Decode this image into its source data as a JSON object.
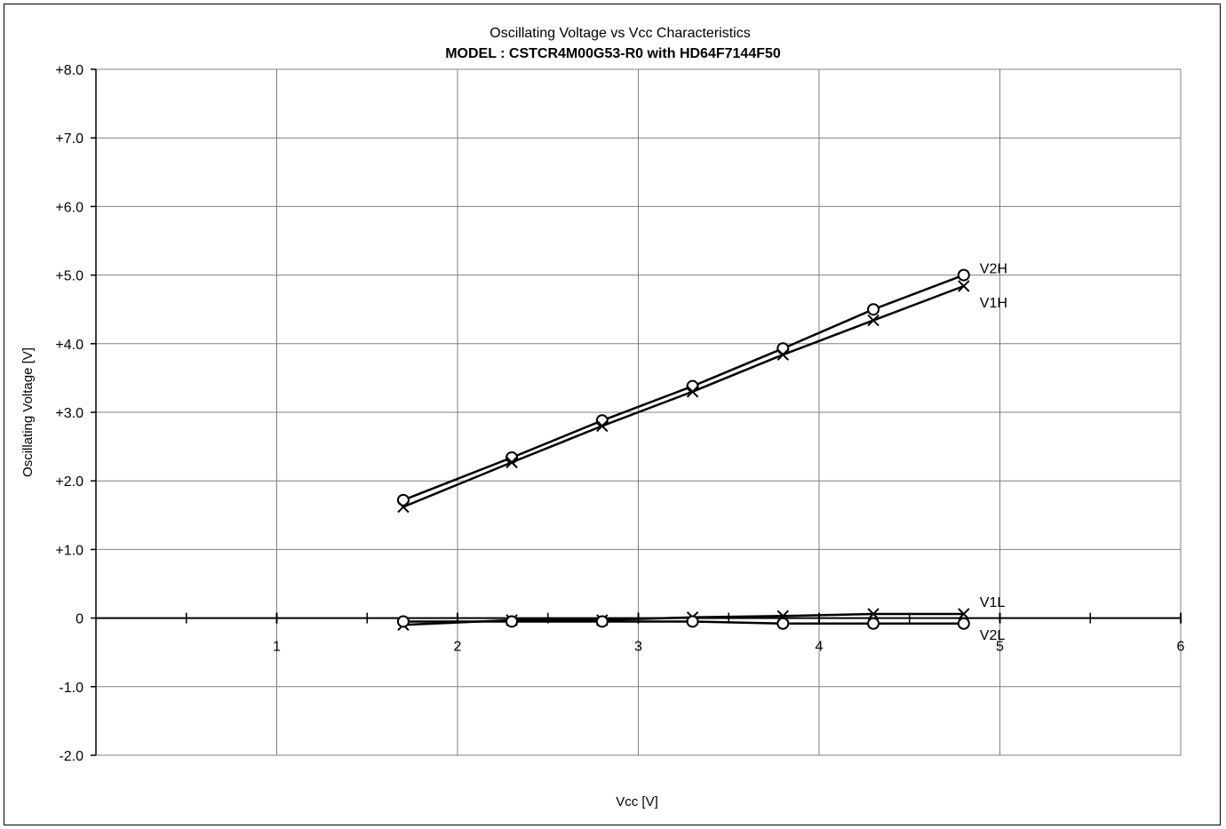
{
  "chart_data": {
    "type": "line",
    "title": "Oscillating Voltage vs Vcc Characteristics",
    "subtitle": "MODEL : CSTCR4M00G53-R0 with HD64F7144F50",
    "xlabel": "Vcc [V]",
    "ylabel": "Oscillating Voltage [V]",
    "xlim": [
      0,
      6
    ],
    "ylim": [
      -2.0,
      8.0
    ],
    "x_ticks": [
      1,
      2,
      3,
      4,
      5,
      6
    ],
    "x_tick_labels": [
      "1",
      "2",
      "3",
      "4",
      "5",
      "6"
    ],
    "y_ticks": [
      8,
      7,
      6,
      5,
      4,
      3,
      2,
      1,
      0,
      -1,
      -2
    ],
    "y_tick_labels": [
      "+8.0",
      "+7.0",
      "+6.0",
      "+5.0",
      "+4.0",
      "+3.0",
      "+2.0",
      "+1.0",
      "0",
      "-1.0",
      "-2.0"
    ],
    "grid": true,
    "legend": "inline labels at line ends",
    "series": [
      {
        "name": "V2H",
        "marker": "circle",
        "x": [
          1.7,
          2.3,
          2.8,
          3.3,
          3.8,
          4.3,
          4.8
        ],
        "values": [
          1.72,
          2.34,
          2.88,
          3.38,
          3.93,
          4.5,
          5.0
        ]
      },
      {
        "name": "V1H",
        "marker": "cross",
        "x": [
          1.7,
          2.3,
          2.8,
          3.3,
          3.8,
          4.3,
          4.8
        ],
        "values": [
          1.62,
          2.27,
          2.8,
          3.3,
          3.84,
          4.34,
          4.84
        ]
      },
      {
        "name": "V1L",
        "marker": "cross",
        "x": [
          1.7,
          2.3,
          2.8,
          3.3,
          3.8,
          4.3,
          4.8
        ],
        "values": [
          -0.1,
          -0.03,
          -0.03,
          0.01,
          0.03,
          0.06,
          0.06
        ]
      },
      {
        "name": "V2L",
        "marker": "circle",
        "x": [
          1.7,
          2.3,
          2.8,
          3.3,
          3.8,
          4.3,
          4.8
        ],
        "values": [
          -0.05,
          -0.05,
          -0.05,
          -0.05,
          -0.08,
          -0.08,
          -0.08
        ]
      }
    ],
    "colors": {
      "line": "#000000",
      "grid": "#808080",
      "frame": "#808080"
    }
  }
}
